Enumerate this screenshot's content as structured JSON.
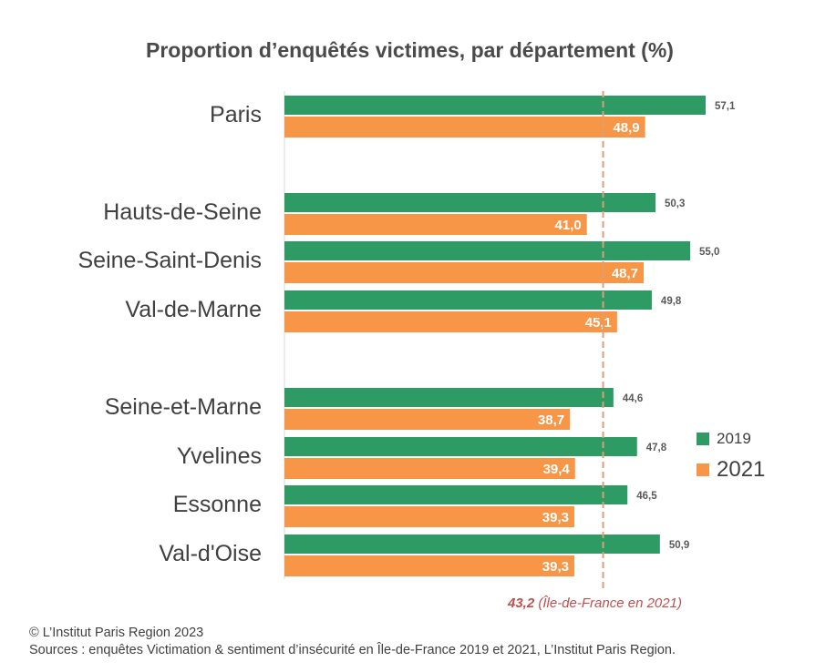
{
  "title": "Proportion d’enquêtés victimes, par département (%)",
  "chart_data": {
    "type": "bar",
    "orientation": "horizontal",
    "title": "Proportion d’enquêtés victimes, par département (%)",
    "categories": [
      "Paris",
      "Hauts-de-Seine",
      "Seine-Saint-Denis",
      "Val-de-Marne",
      "Seine-et-Marne",
      "Yvelines",
      "Essonne",
      "Val-d'Oise"
    ],
    "series": [
      {
        "name": "2019",
        "color": "#2e9a64",
        "values": [
          57.1,
          50.3,
          55.0,
          49.8,
          44.6,
          47.8,
          46.5,
          50.9
        ],
        "labels": [
          "57,1",
          "50,3",
          "55,0",
          "49,8",
          "44,6",
          "47,8",
          "46,5",
          "50,9"
        ]
      },
      {
        "name": "2021",
        "color": "#f79646",
        "values": [
          48.9,
          41.0,
          48.7,
          45.1,
          38.7,
          39.4,
          39.3,
          39.3
        ],
        "labels": [
          "48,9",
          "41,0",
          "48,7",
          "45,1",
          "38,7",
          "39,4",
          "39,3",
          "39,3"
        ]
      }
    ],
    "groups": [
      [
        "Paris"
      ],
      [
        "Hauts-de-Seine",
        "Seine-Saint-Denis",
        "Val-de-Marne"
      ],
      [
        "Seine-et-Marne",
        "Yvelines",
        "Essonne",
        "Val-d'Oise"
      ]
    ],
    "reference_line": {
      "value": 43.2,
      "label_value": "43,2",
      "label_text": "(Île-de-France en 2021)",
      "color": "#c0504d",
      "line_color": "#d9a07a"
    },
    "xlim": [
      0,
      60
    ],
    "legend_position": "right",
    "grid": false
  },
  "footer": {
    "copyright": "© L’Institut Paris Region 2023",
    "sources": "Sources : enquêtes Victimation & sentiment d’insécurité en Île-de-France 2019 et 2021, L’Institut Paris Region."
  }
}
